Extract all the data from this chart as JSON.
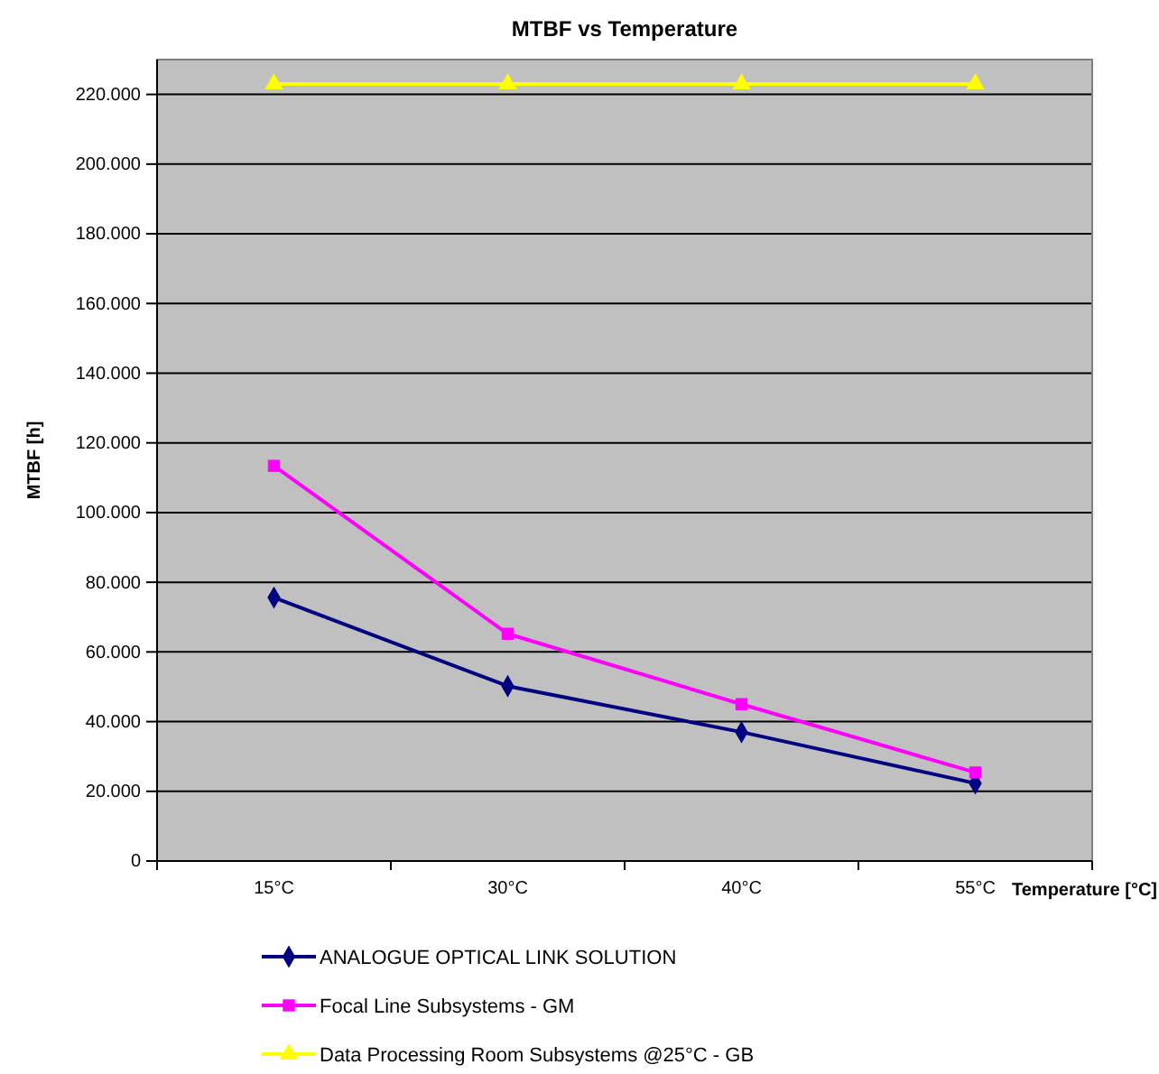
{
  "chart_data": {
    "type": "line",
    "title": "MTBF vs Temperature",
    "xlabel": "Temperature [°C]",
    "ylabel": "MTBF [h]",
    "categories": [
      "15°C",
      "30°C",
      "40°C",
      "55°C"
    ],
    "series": [
      {
        "name": "ANALOGUE OPTICAL LINK SOLUTION",
        "color": "#000080",
        "marker": "diamond",
        "values": [
          75600,
          50200,
          37000,
          22300
        ]
      },
      {
        "name": "Focal Line Subsystems - GM",
        "color": "#ff00ff",
        "marker": "square",
        "values": [
          113400,
          65200,
          45000,
          25400
        ]
      },
      {
        "name": "Data Processing Room Subsystems @25°C - GB",
        "color": "#ffff00",
        "marker": "triangle",
        "values": [
          223000,
          223000,
          223000,
          223000
        ]
      }
    ],
    "ylim": [
      0,
      230000
    ],
    "yticks": [
      {
        "value": 0,
        "label": "0"
      },
      {
        "value": 20000,
        "label": "20.000"
      },
      {
        "value": 40000,
        "label": "40.000"
      },
      {
        "value": 60000,
        "label": "60.000"
      },
      {
        "value": 80000,
        "label": "80.000"
      },
      {
        "value": 100000,
        "label": "100.000"
      },
      {
        "value": 120000,
        "label": "120.000"
      },
      {
        "value": 140000,
        "label": "140.000"
      },
      {
        "value": 160000,
        "label": "160.000"
      },
      {
        "value": 180000,
        "label": "180.000"
      },
      {
        "value": 200000,
        "label": "200.000"
      },
      {
        "value": 220000,
        "label": "220.000"
      }
    ],
    "grid": "y",
    "legend": "bottom"
  }
}
